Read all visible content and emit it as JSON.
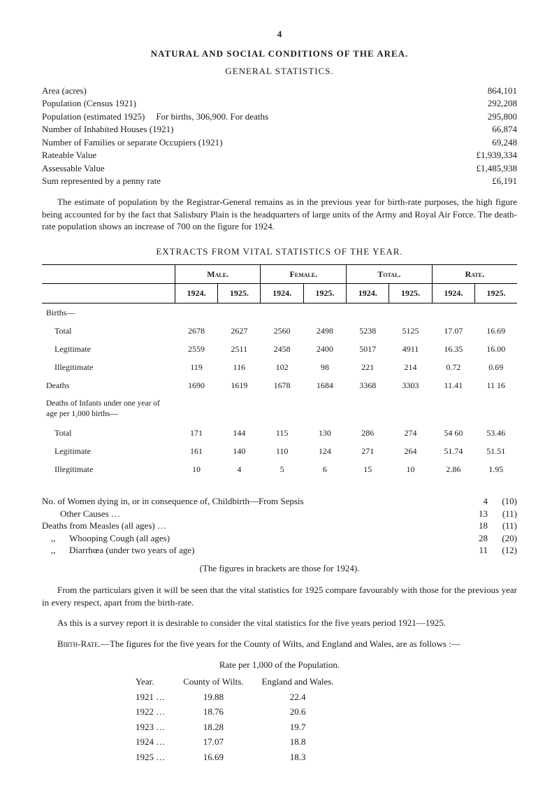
{
  "page_number": "4",
  "main_title": "NATURAL  AND  SOCIAL  CONDITIONS  OF  THE  AREA.",
  "sub_title": "GENERAL  STATISTICS.",
  "general_stats": [
    {
      "label": "Area (acres)",
      "mid": "",
      "value": "864,101"
    },
    {
      "label": "Population (Census 1921)",
      "mid": "",
      "value": "292,208"
    },
    {
      "label": "Population (estimated 1925)",
      "mid": "For births, 306,900.      For deaths",
      "value": "295,800"
    },
    {
      "label": "Number of Inhabited Houses (1921)",
      "mid": "",
      "value": "66,874"
    },
    {
      "label": "Number of Families or separate Occupiers (1921)",
      "mid": "",
      "value": "69,248"
    },
    {
      "label": "Rateable Value",
      "mid": "",
      "value": "£1,939,334"
    },
    {
      "label": "Assessable Value",
      "mid": "",
      "value": "£1,485,938"
    },
    {
      "label": "Sum represented by a penny rate",
      "mid": "",
      "value": "£6,191"
    }
  ],
  "para1": "The estimate of population by the Registrar-General remains as in the previous year for birth-rate purposes, the high figure being accounted for by the fact that Salisbury Plain is the headquarters of large units of the Army and Royal Air Force.  The death-rate population shows an increase of 700 on the figure for 1924.",
  "extracts_heading": "EXTRACTS   FROM   VITAL   STATISTICS   OF   THE   YEAR.",
  "stat_table": {
    "groups": [
      "Male.",
      "Female.",
      "Total.",
      "Rate."
    ],
    "years": [
      "1924.",
      "1925.",
      "1924.",
      "1925.",
      "1924.",
      "1925.",
      "1924.",
      "1925."
    ],
    "rows": [
      {
        "label": "Births—",
        "indent": 0,
        "vals": [
          "",
          "",
          "",
          "",
          "",
          "",
          "",
          ""
        ]
      },
      {
        "label": "Total",
        "indent": 1,
        "vals": [
          "2678",
          "2627",
          "2560",
          "2498",
          "5238",
          "5125",
          "17.07",
          "16.69"
        ]
      },
      {
        "label": "Legitimate",
        "indent": 1,
        "vals": [
          "2559",
          "2511",
          "2458",
          "2400",
          "5017",
          "4911",
          "16.35",
          "16.00"
        ]
      },
      {
        "label": "Illegitimate",
        "indent": 1,
        "vals": [
          "119",
          "116",
          "102",
          "98",
          "221",
          "214",
          "0.72",
          "0.69"
        ]
      },
      {
        "label": "Deaths",
        "indent": 0,
        "vals": [
          "1690",
          "1619",
          "1678",
          "1684",
          "3368",
          "3303",
          "11.41",
          "11 16"
        ]
      },
      {
        "label": "Deaths of Infants under one year of age per 1,000 births—",
        "indent": 0,
        "group_hd": true,
        "vals": [
          "",
          "",
          "",
          "",
          "",
          "",
          "",
          ""
        ]
      },
      {
        "label": "Total",
        "indent": 1,
        "vals": [
          "171",
          "144",
          "115",
          "130",
          "286",
          "274",
          "54 60",
          "53.46"
        ]
      },
      {
        "label": "Legitimate",
        "indent": 1,
        "vals": [
          "161",
          "140",
          "110",
          "124",
          "271",
          "264",
          "51.74",
          "51.51"
        ]
      },
      {
        "label": "Illegitimate",
        "indent": 1,
        "vals": [
          "10",
          "4",
          "5",
          "6",
          "15",
          "10",
          "2.86",
          "1.95"
        ]
      }
    ]
  },
  "causes": [
    {
      "label": "No. of Women dying in, or in consequence of, Childbirth—From Sepsis",
      "num": "4",
      "paren": "(10)"
    },
    {
      "label": "        Other Causes …",
      "num": "13",
      "paren": "(11)"
    },
    {
      "label": "Deaths from Measles (all ages) …",
      "num": "18",
      "paren": "(11)"
    },
    {
      "label": "    ,,      Whooping Cough (all ages)",
      "num": "28",
      "paren": "(20)"
    },
    {
      "label": "    ,,      Diarrhœa (under two years of age)",
      "num": "11",
      "paren": "(12)"
    }
  ],
  "fig_note": "(The figures in brackets are those for 1924).",
  "para2": "From the particulars given it will be seen that the vital statistics for 1925 compare favourably with those for the previous year in every respect, apart from the birth-rate.",
  "para3": "As this is a survey report it is desirable to consider the vital statistics for the five years period 1921—1925.",
  "para4_lead": "Birth-Rate.",
  "para4_rest": "—The figures for the five years for the County of Wilts, and England and Wales, are as follows :—",
  "rate_caption": "Rate per 1,000 of the Population.",
  "rate_table": {
    "head": {
      "year": "Year.",
      "col1": "County of Wilts.",
      "col2": "England and Wales."
    },
    "rows": [
      {
        "year": "1921 …",
        "c1": "19.88",
        "c2": "22.4"
      },
      {
        "year": "1922 …",
        "c1": "18.76",
        "c2": "20.6"
      },
      {
        "year": "1923 …",
        "c1": "18.28",
        "c2": "19.7"
      },
      {
        "year": "1924 …",
        "c1": "17.07",
        "c2": "18.8"
      },
      {
        "year": "1925 …",
        "c1": "16.69",
        "c2": "18.3"
      }
    ]
  }
}
